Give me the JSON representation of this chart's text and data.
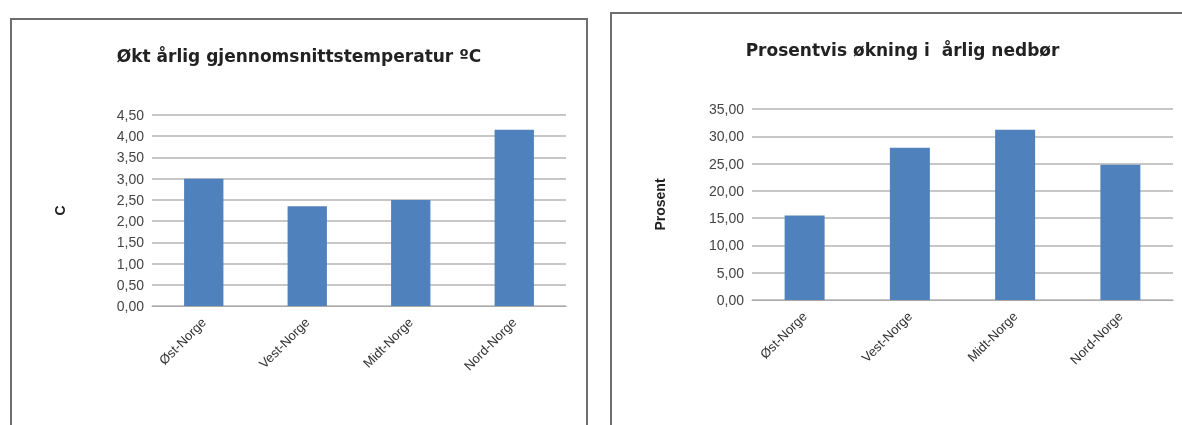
{
  "chart_data": [
    {
      "type": "bar",
      "title": "Økt årlig gjennomsnittstemperatur ºC",
      "ylabel": "C",
      "categories": [
        "Øst-Norge",
        "Vest-Norge",
        "Midt-Norge",
        "Nord-Norge"
      ],
      "values": [
        3.0,
        2.35,
        2.5,
        4.15
      ],
      "color": "#4f81bd",
      "ylim": [
        0,
        4.5
      ],
      "yticks": [
        {
          "value": 0,
          "label": "0,00"
        },
        {
          "value": 0.5,
          "label": "0,50"
        },
        {
          "value": 1,
          "label": "1,00"
        },
        {
          "value": 1.5,
          "label": "1,50"
        },
        {
          "value": 2,
          "label": "2,00"
        },
        {
          "value": 2.5,
          "label": "2,50"
        },
        {
          "value": 3,
          "label": "3,00"
        },
        {
          "value": 3.5,
          "label": "3,50"
        },
        {
          "value": 4,
          "label": "4,00"
        },
        {
          "value": 4.5,
          "label": "4,50"
        }
      ],
      "grid": "y"
    },
    {
      "type": "bar",
      "title": "Prosentvis økning i  årlig nedbør",
      "ylabel": "Prosent",
      "categories": [
        "Øst-Norge",
        "Vest-Norge",
        "Midt-Norge",
        "Nord-Norge"
      ],
      "values": [
        15.5,
        27.9,
        31.2,
        24.8
      ],
      "color": "#4f81bd",
      "ylim": [
        0,
        35
      ],
      "yticks": [
        {
          "value": 0,
          "label": "0,00"
        },
        {
          "value": 5,
          "label": "5,00"
        },
        {
          "value": 10,
          "label": "10,00"
        },
        {
          "value": 15,
          "label": "15,00"
        },
        {
          "value": 20,
          "label": "20,00"
        },
        {
          "value": 25,
          "label": "25,00"
        },
        {
          "value": 30,
          "label": "30,00"
        },
        {
          "value": 35,
          "label": "35,00"
        }
      ],
      "grid": "y"
    }
  ]
}
